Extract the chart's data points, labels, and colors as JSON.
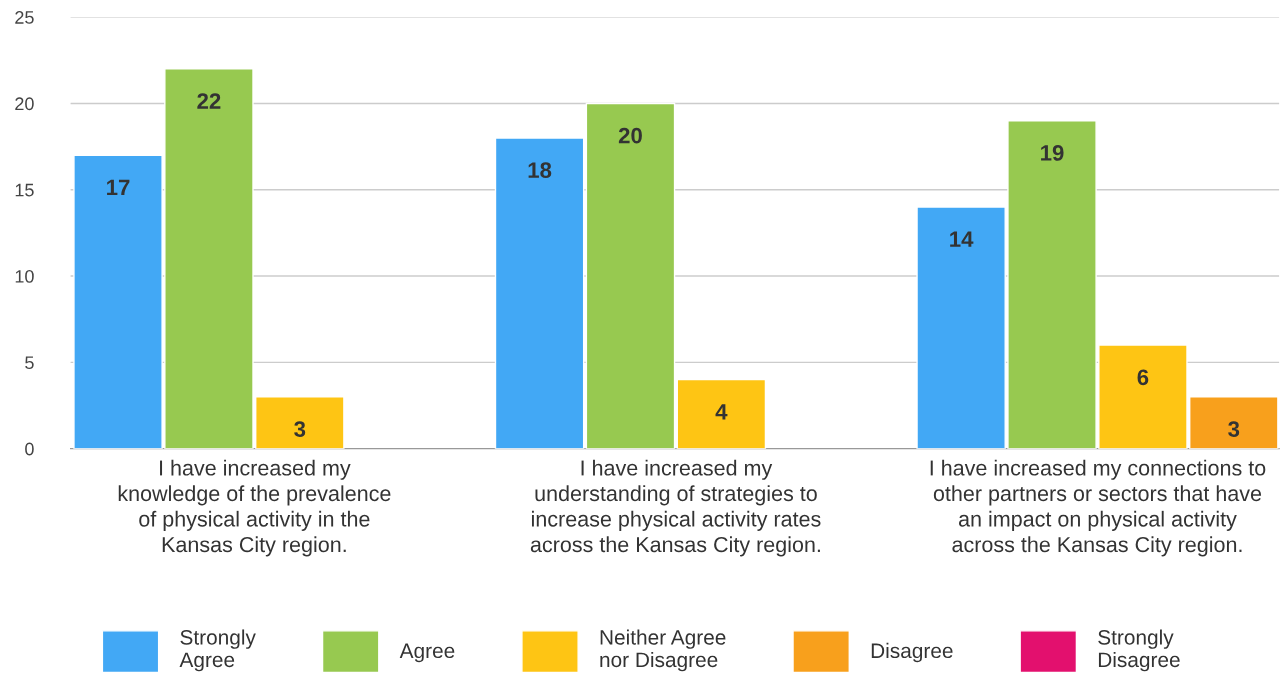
{
  "chart_data": {
    "type": "bar",
    "categories": [
      "I have increased my\nknowledge of the prevalence\nof physical activity in the\nKansas City region.",
      "I have increased my\nunderstanding of strategies to\nincrease physical activity rates\nacross the Kansas City region.",
      "I have increased my connections to\nother partners or sectors that have\nan impact on physical activity\nacross the Kansas City region."
    ],
    "series": [
      {
        "name": "Strongly\nAgree",
        "color": "#42a8f5",
        "values": [
          17,
          18,
          14
        ]
      },
      {
        "name": "Agree",
        "color": "#97c950",
        "values": [
          22,
          20,
          19
        ]
      },
      {
        "name": "Neither Agree\nnor Disagree",
        "color": "#fec514",
        "values": [
          3,
          4,
          6
        ]
      },
      {
        "name": "Disagree",
        "color": "#f8a01c",
        "values": [
          null,
          null,
          3
        ]
      },
      {
        "name": "Strongly\nDisagree",
        "color": "#e3106e",
        "values": [
          null,
          null,
          null
        ]
      }
    ],
    "ylim": [
      0,
      25
    ],
    "yticks": [
      0,
      5,
      10,
      15,
      20,
      25
    ],
    "grid": "y",
    "legend": "bottom",
    "data_labels": true
  }
}
